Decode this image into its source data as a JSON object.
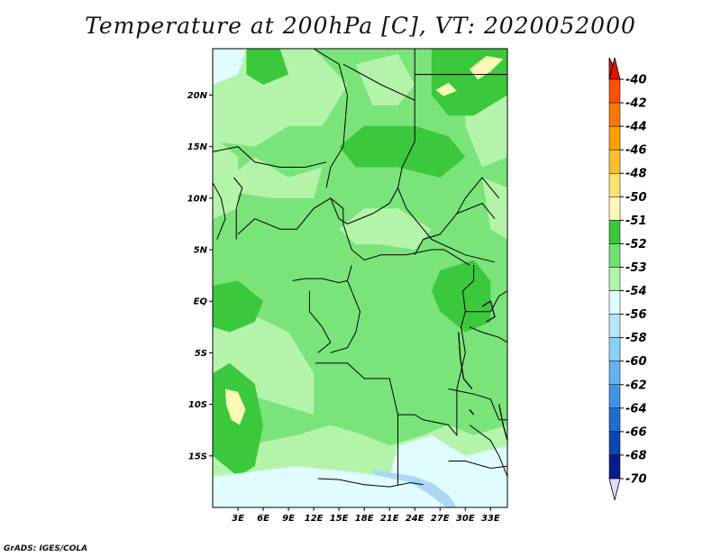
{
  "title": "Temperature at 200hPa [C], VT: 2020052000",
  "credit": "GrADS: IGES/COLA",
  "map": {
    "lat_ticks": [
      "20N",
      "15N",
      "10N",
      "5N",
      "EQ",
      "5S",
      "10S",
      "15S"
    ],
    "lat_values": [
      20,
      15,
      10,
      5,
      0,
      -5,
      -10,
      -15
    ],
    "lon_ticks": [
      "3E",
      "6E",
      "9E",
      "12E",
      "15E",
      "18E",
      "21E",
      "24E",
      "27E",
      "30E",
      "33E"
    ],
    "lon_values": [
      3,
      6,
      9,
      12,
      15,
      18,
      21,
      24,
      27,
      30,
      33
    ],
    "lat_range": [
      -20,
      24.5
    ],
    "lon_range": [
      0,
      35
    ]
  },
  "colorbar": {
    "levels": [
      "-40",
      "-42",
      "-44",
      "-46",
      "-48",
      "-50",
      "-51",
      "-52",
      "-53",
      "-54",
      "-56",
      "-58",
      "-60",
      "-62",
      "-64",
      "-66",
      "-68",
      "-70"
    ],
    "colors": [
      "#ff2a00",
      "#ff5000",
      "#ff7800",
      "#ffa000",
      "#ffbe30",
      "#ffe070",
      "#fff8b8",
      "#38c838",
      "#6ee46e",
      "#b0f4a8",
      "#e0fcff",
      "#b4e6ff",
      "#8cd0fa",
      "#64b4f0",
      "#3c96e6",
      "#1e6ed2",
      "#0a46b4",
      "#061e8c",
      "#040a60"
    ],
    "arrow_top_color": "#e01400",
    "arrow_bottom_color": "#e0dcff"
  },
  "palette": {
    "base": "#7ae47a",
    "dark": "#3cc83c",
    "light": "#b4f4aa",
    "pale": "#e0fcff",
    "blue": "#aad8f4",
    "yellow": "#fafab4",
    "boundary": "#000000"
  }
}
